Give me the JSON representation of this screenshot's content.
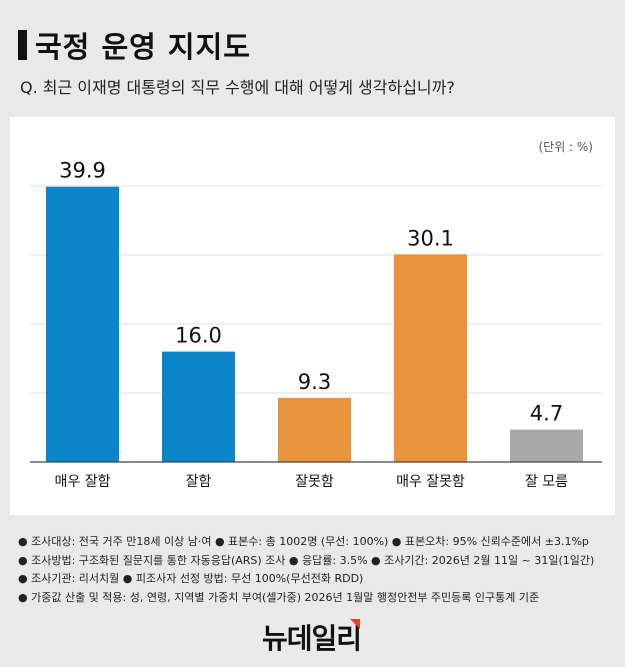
{
  "title": "국정 운영 지지도",
  "question": "Q. 최근 이재명 대통령의 직무 수행에 대해 어떻게 생각하십니까?",
  "unit": "(단위 : %)",
  "chart_data": {
    "type": "bar",
    "categories": [
      "매우 잘함",
      "잘함",
      "잘못함",
      "매우 잘못함",
      "잘 모름"
    ],
    "values": [
      39.9,
      16.0,
      9.3,
      30.1,
      4.7
    ],
    "labels": [
      "39.9",
      "16.0",
      "9.3",
      "30.1",
      "4.7"
    ],
    "colors": [
      "#0b87c9",
      "#0b87c9",
      "#e8943c",
      "#e8943c",
      "#a9a9a9"
    ],
    "ylim": [
      0,
      40
    ],
    "grid": true
  },
  "notes": [
    "● 조사대상: 전국 거주 만18세 이상 남·여 ● 표본수: 총 1002명 (무선: 100%) ● 표본오차: 95% 신뢰수준에서 ±3.1%p",
    "● 조사방법: 구조화된 질문지를 통한 자동응답(ARS) 조사 ● 응답률: 3.5% ● 조사기간: 2026년 2월 11일 ~ 31일(1일간)",
    "● 조사기관: 리서치월 ● 피조사자 선정 방법: 무선 100%(무선전화 RDD)",
    "● 가중값 산출 및 적용: 성, 연령, 지역별 가중치 부여(셀가중) 2026년 1월말 행정안전부 주민등록 인구통계 기준"
  ],
  "logo": "뉴데일리"
}
